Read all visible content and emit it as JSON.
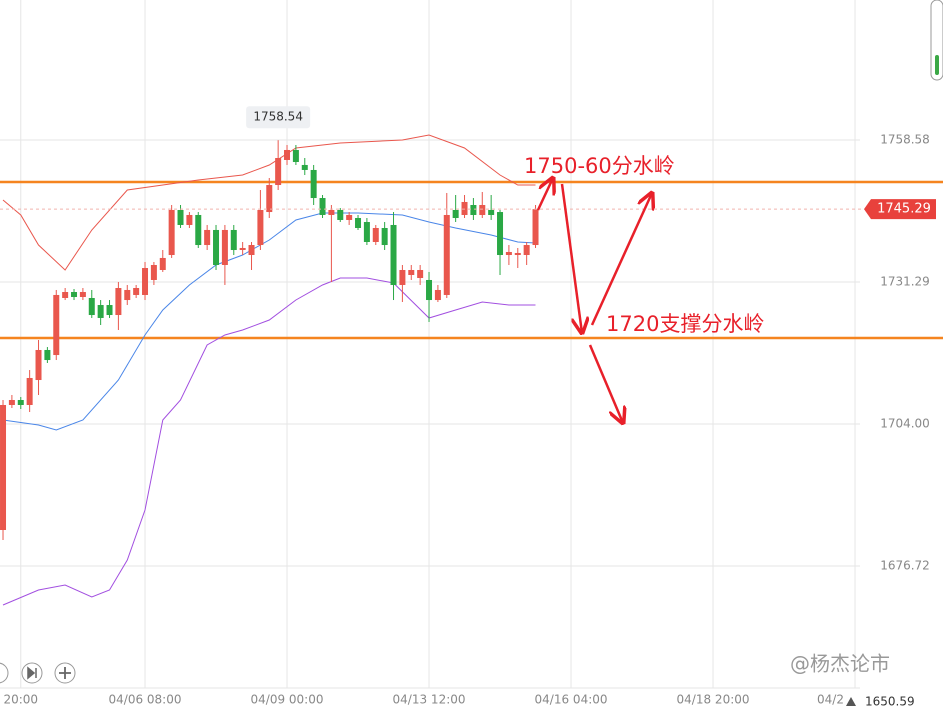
{
  "chart_data": {
    "type": "candlestick",
    "open": [
      1683.64,
      1707.66,
      1708.62,
      1707.66,
      1712.46,
      1718.23,
      1717.26,
      1728.22,
      1729.37,
      1728.41,
      1728.22,
      1726.87,
      1726.87,
      1724.95,
      1727.83,
      1728.8,
      1728.8,
      1731.68,
      1733.6,
      1736.48,
      1745.13,
      1742.25,
      1744.17,
      1738.4,
      1741.29,
      1734.56,
      1741.29,
      1737.44,
      1736.48,
      1738.4,
      1744.74,
      1749.93,
      1754.74,
      1756.66,
      1753.78,
      1752.82,
      1747.43,
      1744.17,
      1745.13,
      1743.21,
      1743.59,
      1742.82,
      1738.98,
      1741.67,
      1742.25,
      1730.72,
      1732.64,
      1732.06,
      1731.68,
      1727.83,
      1728.8,
      1745.13,
      1744.17,
      1746.09,
      1744.17,
      1745.13,
      1744.74,
      1736.48,
      1736.48,
      1736.48,
      1738.4
    ],
    "high": [
      1708.62,
      1709.58,
      1709.2,
      1714.38,
      1720.15,
      1718.8,
      1729.76,
      1730.14,
      1729.95,
      1730.14,
      1729.76,
      1727.83,
      1727.83,
      1731.29,
      1730.72,
      1730.72,
      1735.14,
      1735.14,
      1737.44,
      1746.09,
      1746.09,
      1744.74,
      1744.74,
      1742.25,
      1742.25,
      1742.25,
      1742.25,
      1738.98,
      1738.98,
      1748.97,
      1751.28,
      1758.54,
      1757.62,
      1757.62,
      1755.12,
      1753.78,
      1748.01,
      1746.09,
      1745.51,
      1744.74,
      1744.17,
      1743.59,
      1742.25,
      1742.82,
      1744.74,
      1734.56,
      1734.56,
      1734.56,
      1733.22,
      1730.72,
      1748.4,
      1748.01,
      1748.01,
      1747.43,
      1748.59,
      1748.01,
      1745.13,
      1738.4,
      1737.83,
      1738.98,
      1746.09
    ],
    "low": [
      1681.72,
      1707.08,
      1706.89,
      1706.31,
      1709.58,
      1715.73,
      1716.3,
      1727.83,
      1727.83,
      1727.83,
      1724.38,
      1723.03,
      1724.38,
      1722.07,
      1726.87,
      1728.22,
      1727.83,
      1730.72,
      1733.22,
      1735.91,
      1741.67,
      1741.67,
      1737.83,
      1737.44,
      1733.6,
      1730.72,
      1736.48,
      1736.48,
      1733.6,
      1737.44,
      1743.59,
      1748.97,
      1753.78,
      1753.78,
      1751.85,
      1746.09,
      1743.59,
      1731.29,
      1742.82,
      1742.25,
      1741.29,
      1738.4,
      1738.4,
      1737.44,
      1727.83,
      1727.45,
      1731.68,
      1730.72,
      1723.61,
      1727.45,
      1728.22,
      1742.82,
      1743.59,
      1743.21,
      1743.59,
      1743.21,
      1732.64,
      1734.56,
      1733.98,
      1734.56,
      1737.83
    ],
    "close": [
      1707.66,
      1708.62,
      1707.66,
      1712.85,
      1718.23,
      1716.3,
      1728.8,
      1729.37,
      1728.41,
      1729.37,
      1724.95,
      1724.38,
      1724.95,
      1730.14,
      1729.76,
      1730.14,
      1733.98,
      1734.56,
      1735.91,
      1745.13,
      1742.25,
      1744.17,
      1738.4,
      1741.29,
      1734.56,
      1741.29,
      1737.44,
      1737.83,
      1738.4,
      1745.13,
      1749.93,
      1755.12,
      1756.66,
      1754.35,
      1752.82,
      1747.43,
      1744.17,
      1745.13,
      1743.21,
      1744.17,
      1741.67,
      1738.98,
      1741.67,
      1738.4,
      1730.72,
      1733.6,
      1733.6,
      1733.6,
      1727.83,
      1729.76,
      1744.17,
      1743.59,
      1746.67,
      1744.17,
      1746.09,
      1744.17,
      1736.48,
      1737.06,
      1736.87,
      1738.4,
      1745.29
    ],
    "up_color": "#e9574d",
    "down_color": "#2aa845",
    "xlim": [
      -0.34,
      96.56
    ],
    "xticks": [
      {
        "value": 2,
        "label": "20:00"
      },
      {
        "value": 16,
        "label": "04/06 08:00"
      },
      {
        "value": 32,
        "label": "04/09 00:00"
      },
      {
        "value": 48,
        "label": "04/13 12:00"
      },
      {
        "value": 64,
        "label": "04/16 04:00"
      },
      {
        "value": 80,
        "label": "04/18 20:00"
      },
      {
        "value": 96,
        "label": "04/2"
      }
    ],
    "ylim": [
      1653.28,
      1785.48
    ],
    "yticks": [
      1758.58,
      1731.29,
      {
        "value": 1704,
        "label": "1704.00"
      },
      1676.72
    ],
    "grid": true,
    "bands": [
      {
        "color": "#e9574d",
        "x": [
          0,
          2,
          4,
          7,
          10,
          14,
          18,
          22,
          27,
          30,
          33,
          38,
          45,
          48,
          52,
          56,
          58,
          60
        ],
        "values": [
          1747.05,
          1744.17,
          1738.4,
          1733.6,
          1741.29,
          1748.97,
          1749.93,
          1750.89,
          1751.85,
          1753.78,
          1757.04,
          1758.0,
          1758.58,
          1759.54,
          1757.04,
          1751.85,
          1749.93,
          1749.93
        ]
      },
      {
        "color": "#4a86e8",
        "x": [
          0,
          4,
          6,
          9,
          13,
          16,
          18,
          21,
          24,
          27,
          30,
          33,
          36,
          40,
          45,
          48,
          51,
          55,
          58,
          60
        ],
        "values": [
          1704.78,
          1703.82,
          1702.85,
          1704.78,
          1712.46,
          1721.11,
          1725.91,
          1730.72,
          1734.56,
          1736.48,
          1739.36,
          1743.21,
          1744.55,
          1744.55,
          1744.17,
          1742.82,
          1741.67,
          1740.32,
          1738.98,
          1738.79
        ]
      },
      {
        "color": "#a24fe0",
        "x": [
          0,
          4,
          7,
          10,
          12,
          14,
          16,
          18,
          20,
          23,
          25,
          27,
          30,
          33,
          36,
          38,
          41,
          44,
          48,
          51,
          54,
          57,
          60
        ],
        "values": [
          1669.22,
          1672.11,
          1673.07,
          1670.76,
          1672.11,
          1677.87,
          1687.48,
          1704.78,
          1708.62,
          1719.19,
          1721.11,
          1722.07,
          1723.99,
          1727.83,
          1730.72,
          1732.06,
          1732.06,
          1731.1,
          1724.38,
          1725.91,
          1727.45,
          1726.87,
          1726.87
        ]
      }
    ],
    "levels": [
      {
        "value": 1750.51,
        "color": "#f5841f"
      },
      {
        "value": 1720.53,
        "color": "#f5841f"
      }
    ],
    "annotations": [
      "1750-60分水岭",
      "1720支撑分水岭"
    ],
    "watermark": "@杨杰论市",
    "footer_value": "1650.59"
  }
}
